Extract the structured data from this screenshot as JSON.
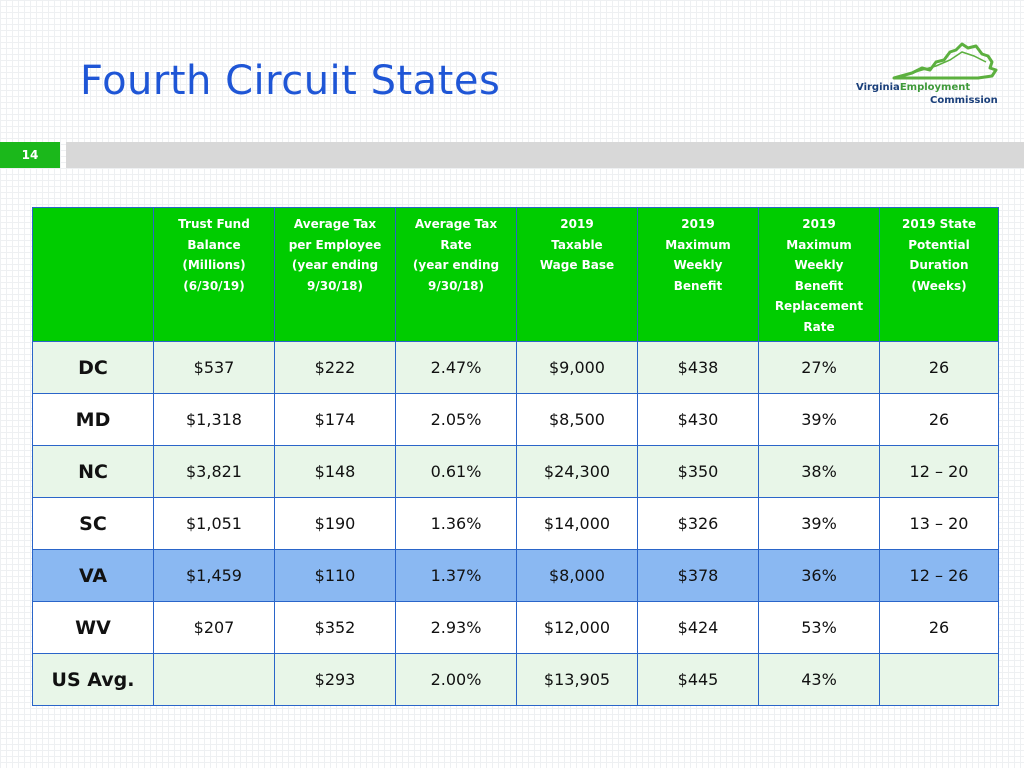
{
  "slide": {
    "title": "Fourth Circuit States",
    "number": "14"
  },
  "logo": {
    "word_virginia": "Virginia",
    "word_employment": "Employment",
    "word_commission": "Commission",
    "icon": "virginia-map-outline-icon",
    "colors": {
      "map": "#5cb03f",
      "text_blue": "#1a3f7a",
      "text_green": "#3f9a3a"
    }
  },
  "colors": {
    "title": "#1f56d6",
    "header_bg": "#00cc00",
    "highlight_row": "#8ab8f2",
    "row_tint": "#e8f6e8",
    "slide_number_bg": "#1bb81b"
  },
  "table": {
    "headers": [
      {
        "lines": []
      },
      {
        "lines": [
          "Trust Fund",
          "Balance",
          "(Millions)",
          "(6/30/19)"
        ]
      },
      {
        "lines": [
          "Average Tax",
          "per Employee",
          "(year ending",
          "9/30/18)"
        ]
      },
      {
        "lines": [
          "Average Tax",
          "Rate",
          "(year ending",
          "9/30/18)"
        ]
      },
      {
        "lines": [
          "2019",
          "Taxable",
          "Wage Base"
        ]
      },
      {
        "lines": [
          "2019",
          "Maximum",
          "Weekly",
          "Benefit"
        ]
      },
      {
        "lines": [
          "2019",
          "Maximum",
          "Weekly",
          "Benefit",
          "Replacement",
          "Rate"
        ]
      },
      {
        "lines": [
          "2019 State",
          "Potential",
          "Duration",
          "(Weeks)"
        ]
      }
    ],
    "rows": [
      {
        "state": "DC",
        "cells": [
          "$537",
          "$222",
          "2.47%",
          "$9,000",
          "$438",
          "27%",
          "26"
        ]
      },
      {
        "state": "MD",
        "cells": [
          "$1,318",
          "$174",
          "2.05%",
          "$8,500",
          "$430",
          "39%",
          "26"
        ]
      },
      {
        "state": "NC",
        "cells": [
          "$3,821",
          "$148",
          "0.61%",
          "$24,300",
          "$350",
          "38%",
          "12 – 20"
        ]
      },
      {
        "state": "SC",
        "cells": [
          "$1,051",
          "$190",
          "1.36%",
          "$14,000",
          "$326",
          "39%",
          "13 – 20"
        ]
      },
      {
        "state": "VA",
        "cells": [
          "$1,459",
          "$110",
          "1.37%",
          "$8,000",
          "$378",
          "36%",
          "12 – 26"
        ]
      },
      {
        "state": "WV",
        "cells": [
          "$207",
          "$352",
          "2.93%",
          "$12,000",
          "$424",
          "53%",
          "26"
        ]
      },
      {
        "state": "US Avg.",
        "cells": [
          "",
          "$293",
          "2.00%",
          "$13,905",
          "$445",
          "43%",
          ""
        ]
      }
    ]
  }
}
